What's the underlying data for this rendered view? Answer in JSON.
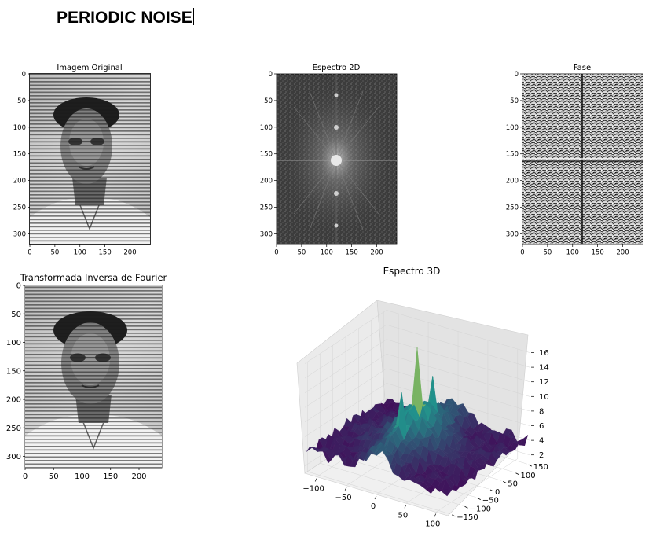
{
  "heading": "PERIODIC NOISE",
  "chart_data": [
    {
      "type": "heatmap",
      "title": "Imagem Original",
      "colormap": "gray",
      "xlim": [
        0,
        240
      ],
      "ylim": [
        320,
        0
      ],
      "x_ticks": [
        "0",
        "50",
        "100",
        "150",
        "200"
      ],
      "y_ticks": [
        "0",
        "50",
        "100",
        "150",
        "200",
        "250",
        "300"
      ],
      "content": "portrait photo overlaid with horizontal periodic stripes"
    },
    {
      "type": "heatmap",
      "title": "Espectro 2D",
      "colormap": "gray",
      "xlim": [
        0,
        240
      ],
      "ylim": [
        320,
        0
      ],
      "x_ticks": [
        "0",
        "50",
        "100",
        "150",
        "200"
      ],
      "y_ticks": [
        "0",
        "50",
        "100",
        "150",
        "200",
        "250",
        "300"
      ],
      "content": "log-magnitude spectrum with bright center and vertical row of noise peaks"
    },
    {
      "type": "heatmap",
      "title": "Fase",
      "colormap": "gray",
      "xlim": [
        0,
        240
      ],
      "ylim": [
        320,
        0
      ],
      "x_ticks": [
        "0",
        "50",
        "100",
        "150",
        "200"
      ],
      "y_ticks": [
        "0",
        "50",
        "100",
        "150",
        "200",
        "250",
        "300"
      ],
      "content": "noise-like phase map"
    },
    {
      "type": "heatmap",
      "title": "Transformada Inversa de Fourier",
      "colormap": "gray",
      "xlim": [
        0,
        240
      ],
      "ylim": [
        320,
        0
      ],
      "x_ticks": [
        "0",
        "50",
        "100",
        "150",
        "200"
      ],
      "y_ticks": [
        "0",
        "50",
        "100",
        "150",
        "200",
        "250",
        "300"
      ],
      "content": "reconstructed striped portrait"
    },
    {
      "type": "surface3d",
      "title": "Espectro 3D",
      "colormap": "viridis",
      "x_ticks": [
        "−100",
        "−50",
        "0",
        "50",
        "100"
      ],
      "y_ticks": [
        "−150",
        "−100",
        "−50",
        "0",
        "50",
        "100",
        "150"
      ],
      "z_ticks": [
        "2",
        "4",
        "6",
        "8",
        "10",
        "12",
        "14",
        "16"
      ],
      "xlim": [
        -120,
        120
      ],
      "ylim": [
        -160,
        160
      ],
      "zlim": [
        1,
        16
      ]
    }
  ],
  "colors": {
    "viridis_low": "#440154",
    "viridis_mid": "#21918c",
    "viridis_high": "#fde725"
  }
}
